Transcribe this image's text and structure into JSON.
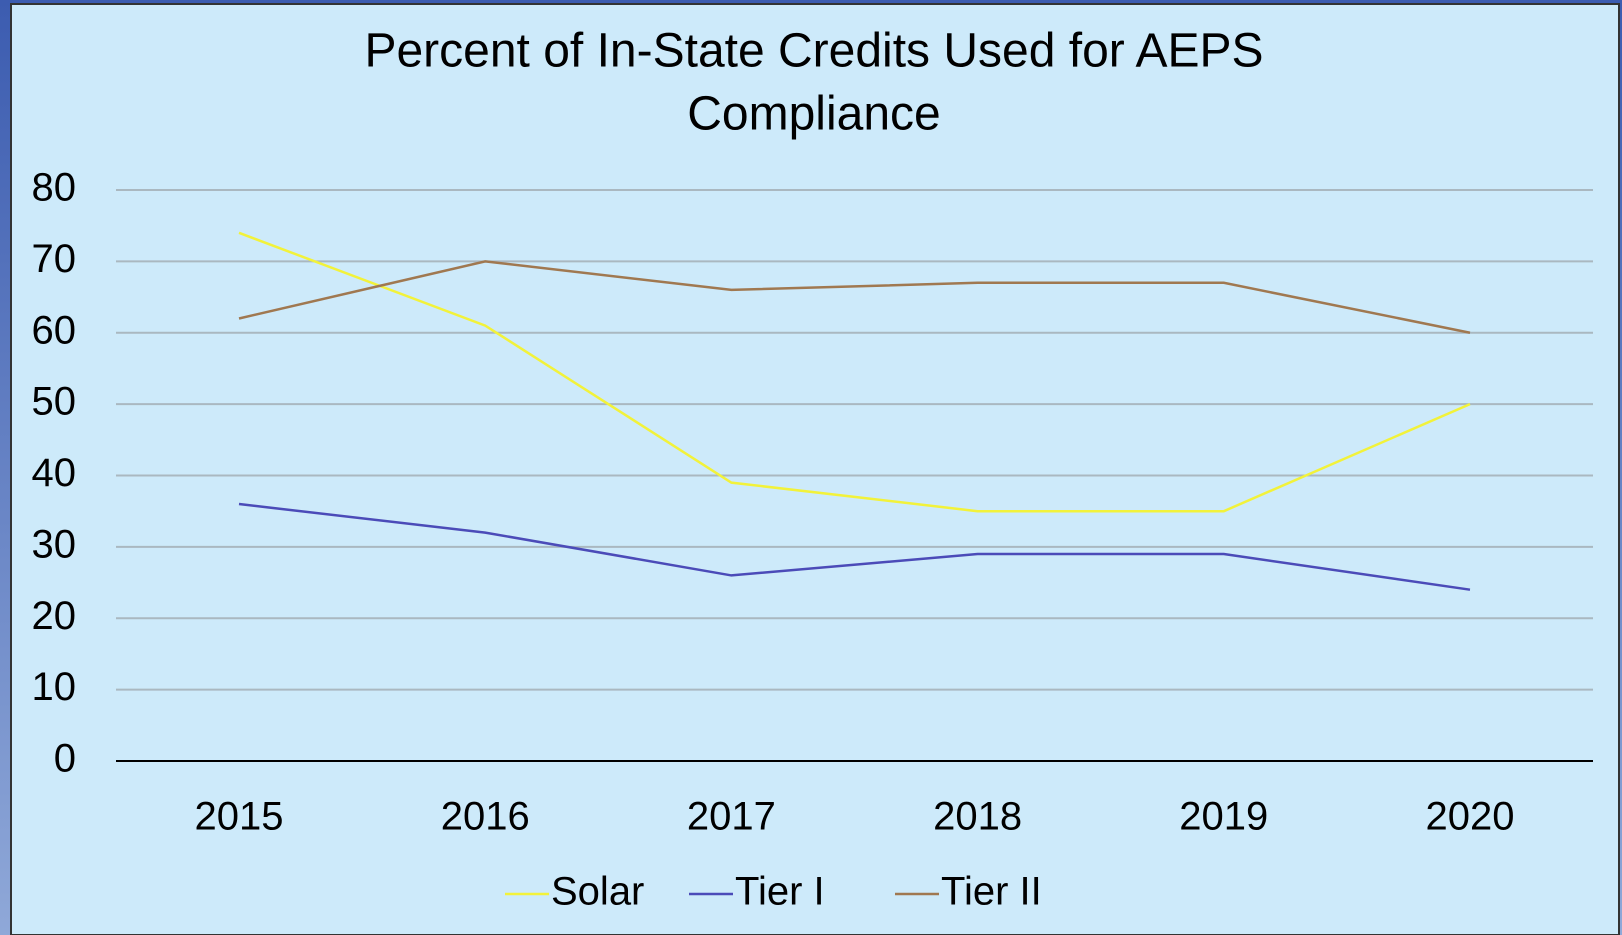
{
  "chart_data": {
    "type": "line",
    "title": [
      "Percent of In-State Credits Used for AEPS",
      "Compliance"
    ],
    "categories": [
      "2015",
      "2016",
      "2017",
      "2018",
      "2019",
      "2020"
    ],
    "series": [
      {
        "name": "Solar",
        "color": "#f2f23a",
        "values": [
          74,
          61,
          39,
          35,
          35,
          50
        ]
      },
      {
        "name": "Tier I",
        "color": "#4b4bb8",
        "values": [
          36,
          32,
          26,
          29,
          29,
          24
        ]
      },
      {
        "name": "Tier II",
        "color": "#a07850",
        "values": [
          62,
          70,
          66,
          67,
          67,
          60
        ]
      }
    ],
    "ylim": [
      0,
      80
    ],
    "yticks": [
      0,
      10,
      20,
      30,
      40,
      50,
      60,
      70,
      80
    ],
    "grid": true,
    "legend": "bottom"
  }
}
